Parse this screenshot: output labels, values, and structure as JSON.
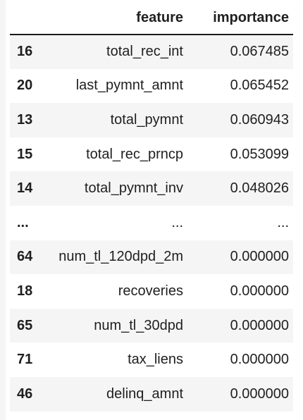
{
  "table": {
    "columns": [
      "",
      "feature",
      "importance"
    ],
    "rows": [
      {
        "index": "16",
        "feature": "total_rec_int",
        "importance": "0.067485"
      },
      {
        "index": "20",
        "feature": "last_pymnt_amnt",
        "importance": "0.065452"
      },
      {
        "index": "13",
        "feature": "total_pymnt",
        "importance": "0.060943"
      },
      {
        "index": "15",
        "feature": "total_rec_prncp",
        "importance": "0.053099"
      },
      {
        "index": "14",
        "feature": "total_pymnt_inv",
        "importance": "0.048026"
      },
      {
        "index": "...",
        "feature": "...",
        "importance": "..."
      },
      {
        "index": "64",
        "feature": "num_tl_120dpd_2m",
        "importance": "0.000000"
      },
      {
        "index": "18",
        "feature": "recoveries",
        "importance": "0.000000"
      },
      {
        "index": "65",
        "feature": "num_tl_30dpd",
        "importance": "0.000000"
      },
      {
        "index": "71",
        "feature": "tax_liens",
        "importance": "0.000000"
      },
      {
        "index": "46",
        "feature": "delinq_amnt",
        "importance": "0.000000"
      }
    ]
  }
}
